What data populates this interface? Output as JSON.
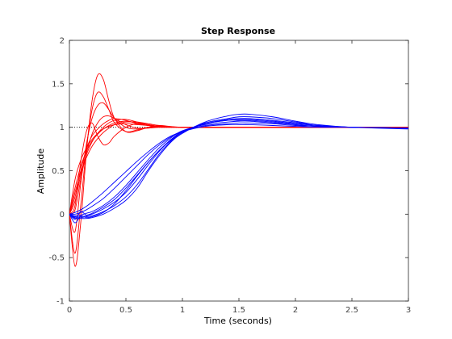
{
  "chart_data": {
    "type": "line",
    "title": "Step Response",
    "xlabel": "Time (seconds)",
    "ylabel": "Amplitude",
    "xlim": [
      0,
      3
    ],
    "ylim": [
      -1,
      2
    ],
    "xticks": [
      0,
      0.5,
      1,
      1.5,
      2,
      2.5,
      3
    ],
    "xtick_labels": [
      "0",
      "0.5",
      "1",
      "1.5",
      "2",
      "2.5",
      "3"
    ],
    "yticks": [
      -1,
      -0.5,
      0,
      0.5,
      1,
      1.5,
      2
    ],
    "ytick_labels": [
      "-1",
      "-0.5",
      "0",
      "0.5",
      "1",
      "1.5",
      "2"
    ],
    "grid": false,
    "reference_line": {
      "y": 1,
      "x_range": [
        0,
        1
      ],
      "style": "dotted",
      "color": "#000000"
    },
    "colors": {
      "fast_family": "#ff0000",
      "slow_family": "#0000ff"
    },
    "series": [
      {
        "color": "#ff0000",
        "x": [
          0,
          0.05,
          0.1,
          0.15,
          0.2,
          0.25,
          0.3,
          0.35,
          0.4,
          0.5,
          0.6,
          0.7,
          0.8,
          1.0,
          1.5,
          2.0,
          3.0
        ],
        "y": [
          0,
          -0.6,
          -0.1,
          0.7,
          1.3,
          1.6,
          1.55,
          1.3,
          1.1,
          0.95,
          0.96,
          1.0,
          1.02,
          1.0,
          1.0,
          1.0,
          1.0
        ]
      },
      {
        "color": "#ff0000",
        "x": [
          0,
          0.05,
          0.1,
          0.15,
          0.2,
          0.25,
          0.3,
          0.35,
          0.4,
          0.5,
          0.6,
          0.7,
          0.8,
          1.0,
          1.5,
          2.0,
          3.0
        ],
        "y": [
          0,
          -0.45,
          0.1,
          0.75,
          1.2,
          1.4,
          1.35,
          1.2,
          1.05,
          0.95,
          0.97,
          1.0,
          1.01,
          1.0,
          1.0,
          1.0,
          1.0
        ]
      },
      {
        "color": "#ff0000",
        "x": [
          0,
          0.05,
          0.1,
          0.15,
          0.2,
          0.25,
          0.3,
          0.35,
          0.4,
          0.5,
          0.6,
          0.7,
          0.8,
          1.0,
          1.5,
          2.0,
          3.0
        ],
        "y": [
          0,
          -0.2,
          0.35,
          0.8,
          1.1,
          1.25,
          1.28,
          1.2,
          1.1,
          1.0,
          0.98,
          1.0,
          1.0,
          1.0,
          1.0,
          1.0,
          1.0
        ]
      },
      {
        "color": "#ff0000",
        "x": [
          0,
          0.05,
          0.1,
          0.15,
          0.2,
          0.25,
          0.3,
          0.35,
          0.4,
          0.5,
          0.6,
          0.7,
          0.8,
          1.0,
          1.5,
          2.0,
          3.0
        ],
        "y": [
          0,
          0.1,
          0.6,
          0.95,
          1.05,
          0.9,
          0.8,
          0.82,
          0.9,
          1.0,
          1.04,
          1.02,
          1.0,
          1.0,
          1.0,
          1.0,
          1.0
        ]
      },
      {
        "color": "#ff0000",
        "x": [
          0,
          0.05,
          0.1,
          0.15,
          0.2,
          0.25,
          0.3,
          0.35,
          0.4,
          0.5,
          0.6,
          0.7,
          0.8,
          1.0,
          1.5,
          2.0,
          3.0
        ],
        "y": [
          0,
          0.2,
          0.5,
          0.75,
          0.9,
          0.98,
          1.04,
          1.08,
          1.1,
          1.08,
          1.04,
          1.02,
          1.01,
          1.0,
          1.0,
          1.0,
          1.0
        ]
      },
      {
        "color": "#ff0000",
        "x": [
          0,
          0.05,
          0.1,
          0.15,
          0.2,
          0.25,
          0.3,
          0.35,
          0.4,
          0.5,
          0.6,
          0.7,
          0.8,
          1.0,
          1.5,
          2.0,
          3.0
        ],
        "y": [
          0,
          0.3,
          0.55,
          0.72,
          0.84,
          0.92,
          0.98,
          1.02,
          1.05,
          1.07,
          1.05,
          1.03,
          1.01,
          1.0,
          1.0,
          1.0,
          1.0
        ]
      },
      {
        "color": "#ff0000",
        "x": [
          0,
          0.05,
          0.1,
          0.15,
          0.2,
          0.25,
          0.3,
          0.35,
          0.4,
          0.5,
          0.6,
          0.7,
          0.8,
          1.0,
          1.5,
          2.0,
          3.0
        ],
        "y": [
          0,
          0.4,
          0.62,
          0.76,
          0.86,
          0.93,
          0.98,
          1.01,
          1.03,
          1.04,
          1.03,
          1.02,
          1.01,
          1.0,
          1.0,
          1.0,
          1.0
        ]
      },
      {
        "color": "#ff0000",
        "x": [
          0,
          0.05,
          0.1,
          0.15,
          0.2,
          0.25,
          0.3,
          0.35,
          0.4,
          0.5,
          0.6,
          0.7,
          0.8,
          1.0,
          1.5,
          2.0,
          3.0
        ],
        "y": [
          0,
          0.25,
          0.48,
          0.65,
          0.78,
          0.87,
          0.94,
          0.99,
          1.03,
          1.06,
          1.06,
          1.04,
          1.02,
          1.0,
          1.0,
          1.0,
          1.0
        ]
      },
      {
        "color": "#ff0000",
        "x": [
          0,
          0.05,
          0.1,
          0.15,
          0.2,
          0.25,
          0.3,
          0.35,
          0.4,
          0.5,
          0.6,
          0.7,
          0.8,
          1.0,
          1.5,
          2.0,
          3.0
        ],
        "y": [
          0,
          0.05,
          0.4,
          0.7,
          0.92,
          1.05,
          1.12,
          1.13,
          1.1,
          1.03,
          0.99,
          0.99,
          1.0,
          1.0,
          1.0,
          1.0,
          1.0
        ]
      },
      {
        "color": "#ff0000",
        "x": [
          0,
          0.05,
          0.1,
          0.15,
          0.2,
          0.25,
          0.3,
          0.35,
          0.4,
          0.5,
          0.6,
          0.7,
          0.8,
          1.0,
          1.5,
          2.0,
          3.0
        ],
        "y": [
          0,
          0.15,
          0.45,
          0.68,
          0.83,
          0.93,
          1.0,
          1.05,
          1.08,
          1.09,
          1.06,
          1.03,
          1.01,
          1.0,
          1.0,
          1.0,
          1.0
        ]
      },
      {
        "color": "#0000ff",
        "x": [
          0,
          0.05,
          0.1,
          0.15,
          0.2,
          0.3,
          0.4,
          0.5,
          0.6,
          0.7,
          0.8,
          0.9,
          1.0,
          1.2,
          1.4,
          1.5,
          1.6,
          1.8,
          2.0,
          2.2,
          2.5,
          3.0
        ],
        "y": [
          0,
          -0.05,
          -0.05,
          -0.05,
          -0.04,
          0.0,
          0.07,
          0.16,
          0.3,
          0.5,
          0.68,
          0.83,
          0.93,
          1.06,
          1.13,
          1.15,
          1.15,
          1.12,
          1.07,
          1.03,
          1.0,
          0.98
        ]
      },
      {
        "color": "#0000ff",
        "x": [
          0,
          0.05,
          0.1,
          0.15,
          0.2,
          0.3,
          0.4,
          0.5,
          0.6,
          0.7,
          0.8,
          0.9,
          1.0,
          1.2,
          1.4,
          1.5,
          1.6,
          1.8,
          2.0,
          2.2,
          2.5,
          3.0
        ],
        "y": [
          0,
          -0.04,
          -0.04,
          -0.03,
          -0.02,
          0.03,
          0.1,
          0.2,
          0.34,
          0.52,
          0.7,
          0.84,
          0.94,
          1.05,
          1.1,
          1.12,
          1.12,
          1.1,
          1.06,
          1.02,
          1.0,
          0.99
        ]
      },
      {
        "color": "#0000ff",
        "x": [
          0,
          0.05,
          0.1,
          0.15,
          0.2,
          0.3,
          0.4,
          0.5,
          0.6,
          0.7,
          0.8,
          0.9,
          1.0,
          1.2,
          1.4,
          1.5,
          1.6,
          1.8,
          2.0,
          2.2,
          2.5,
          3.0
        ],
        "y": [
          0,
          -0.03,
          -0.03,
          -0.02,
          0.0,
          0.06,
          0.14,
          0.25,
          0.4,
          0.57,
          0.73,
          0.86,
          0.95,
          1.04,
          1.08,
          1.09,
          1.09,
          1.07,
          1.04,
          1.02,
          1.0,
          0.99
        ]
      },
      {
        "color": "#0000ff",
        "x": [
          0,
          0.05,
          0.1,
          0.15,
          0.2,
          0.3,
          0.4,
          0.5,
          0.6,
          0.7,
          0.8,
          0.9,
          1.0,
          1.2,
          1.4,
          1.5,
          1.6,
          1.8,
          2.0,
          2.2,
          2.5,
          3.0
        ],
        "y": [
          0,
          -0.02,
          -0.01,
          0.01,
          0.03,
          0.1,
          0.2,
          0.33,
          0.48,
          0.63,
          0.77,
          0.88,
          0.96,
          1.03,
          1.06,
          1.07,
          1.07,
          1.05,
          1.03,
          1.01,
          1.0,
          0.99
        ]
      },
      {
        "color": "#0000ff",
        "x": [
          0,
          0.05,
          0.1,
          0.15,
          0.2,
          0.3,
          0.4,
          0.5,
          0.6,
          0.7,
          0.8,
          0.9,
          1.0,
          1.2,
          1.4,
          1.5,
          1.6,
          1.8,
          2.0,
          2.2,
          2.5,
          3.0
        ],
        "y": [
          0,
          0.0,
          0.02,
          0.05,
          0.09,
          0.18,
          0.3,
          0.43,
          0.56,
          0.69,
          0.8,
          0.89,
          0.95,
          1.02,
          1.04,
          1.05,
          1.05,
          1.04,
          1.02,
          1.01,
          1.0,
          0.99
        ]
      },
      {
        "color": "#0000ff",
        "x": [
          0,
          0.05,
          0.1,
          0.15,
          0.2,
          0.3,
          0.4,
          0.5,
          0.6,
          0.7,
          0.8,
          0.9,
          1.0,
          1.2,
          1.4,
          1.5,
          1.6,
          1.8,
          2.0,
          2.2,
          2.5,
          3.0
        ],
        "y": [
          0,
          0.02,
          0.05,
          0.09,
          0.14,
          0.25,
          0.37,
          0.49,
          0.61,
          0.72,
          0.82,
          0.9,
          0.95,
          1.01,
          1.03,
          1.03,
          1.03,
          1.02,
          1.01,
          1.0,
          1.0,
          0.99
        ]
      },
      {
        "color": "#0000ff",
        "x": [
          0,
          0.05,
          0.1,
          0.15,
          0.2,
          0.3,
          0.4,
          0.5,
          0.6,
          0.7,
          0.8,
          0.9,
          1.0,
          1.2,
          1.4,
          1.5,
          1.6,
          1.8,
          2.0,
          2.2,
          2.5,
          3.0
        ],
        "y": [
          0,
          -0.1,
          -0.02,
          -0.04,
          -0.03,
          0.02,
          0.12,
          0.27,
          0.44,
          0.6,
          0.74,
          0.85,
          0.94,
          1.04,
          1.09,
          1.1,
          1.1,
          1.08,
          1.05,
          1.02,
          1.0,
          0.99
        ]
      },
      {
        "color": "#0000ff",
        "x": [
          0,
          0.05,
          0.1,
          0.15,
          0.2,
          0.3,
          0.4,
          0.5,
          0.6,
          0.7,
          0.8,
          0.9,
          1.0,
          1.2,
          1.4,
          1.5,
          1.6,
          1.8,
          2.0,
          2.2,
          2.5,
          3.0
        ],
        "y": [
          0,
          -0.06,
          0.03,
          -0.01,
          0.01,
          0.08,
          0.17,
          0.3,
          0.45,
          0.6,
          0.74,
          0.86,
          0.95,
          1.04,
          1.08,
          1.08,
          1.08,
          1.06,
          1.03,
          1.01,
          1.0,
          0.99
        ]
      }
    ]
  }
}
